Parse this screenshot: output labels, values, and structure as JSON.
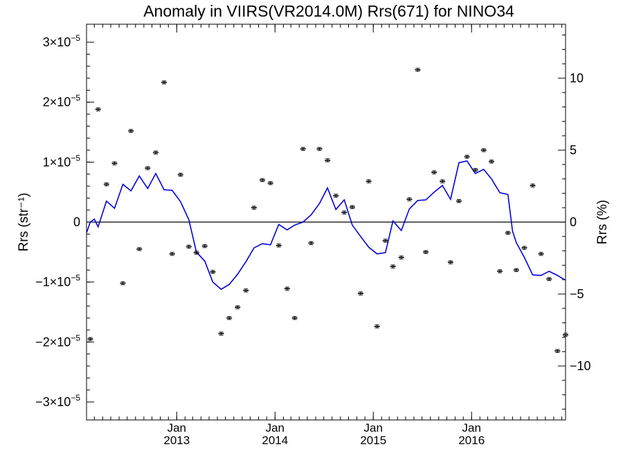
{
  "chart_data": {
    "type": "scatter",
    "title": "Anomaly in VIIRS(VR2014.0M) Rrs(671) for NINO34",
    "ylabel_left": "Rrs (str⁻¹)",
    "ylabel_right": "Rrs (%)",
    "xlim": [
      "2012-02-01",
      "2016-12-15"
    ],
    "ylim": [
      -3.3e-05,
      3.3e-05
    ],
    "y2lim": [
      -13.75,
      13.75
    ],
    "x_ticks": [
      {
        "month": "Jan",
        "year": "2013",
        "date": "2013-01-01"
      },
      {
        "month": "Jan",
        "year": "2014",
        "date": "2014-01-01"
      },
      {
        "month": "Jan",
        "year": "2015",
        "date": "2015-01-01"
      },
      {
        "month": "Jan",
        "year": "2016",
        "date": "2016-01-01"
      }
    ],
    "y_ticks": [
      {
        "value": 3e-05,
        "mantissa": "3",
        "exp": "−5"
      },
      {
        "value": 2e-05,
        "mantissa": "2",
        "exp": "−5"
      },
      {
        "value": 1e-05,
        "mantissa": "1",
        "exp": "−5"
      },
      {
        "value": 0,
        "mantissa": "0",
        "exp": ""
      },
      {
        "value": -1e-05,
        "mantissa": "−1",
        "exp": "−5"
      },
      {
        "value": -2e-05,
        "mantissa": "−2",
        "exp": "−5"
      },
      {
        "value": -3e-05,
        "mantissa": "−3",
        "exp": "−5"
      }
    ],
    "y2_ticks": [
      {
        "value": 10,
        "label": "10"
      },
      {
        "value": 5,
        "label": "5"
      },
      {
        "value": 0,
        "label": "0"
      },
      {
        "value": -5,
        "label": "−5"
      },
      {
        "value": -10,
        "label": "−10"
      }
    ],
    "series": [
      {
        "kind": "points_with_errorbars",
        "color": "#000000",
        "error": 2.5e-07,
        "points": [
          {
            "x": "2012-02-15",
            "y": -1.95e-05
          },
          {
            "x": "2012-03-15",
            "y": 1.88e-05
          },
          {
            "x": "2012-04-15",
            "y": 6.3e-06
          },
          {
            "x": "2012-05-15",
            "y": 9.8e-06
          },
          {
            "x": "2012-06-15",
            "y": -1.02e-05
          },
          {
            "x": "2012-07-15",
            "y": 1.52e-05
          },
          {
            "x": "2012-08-15",
            "y": -4.5e-06
          },
          {
            "x": "2012-09-15",
            "y": 9e-06
          },
          {
            "x": "2012-10-15",
            "y": 1.16e-05
          },
          {
            "x": "2012-11-15",
            "y": 2.33e-05
          },
          {
            "x": "2012-12-15",
            "y": -5.3e-06
          },
          {
            "x": "2013-01-15",
            "y": 7.9e-06
          },
          {
            "x": "2013-02-15",
            "y": -4.1e-06
          },
          {
            "x": "2013-03-15",
            "y": -5.1e-06
          },
          {
            "x": "2013-04-15",
            "y": -4e-06
          },
          {
            "x": "2013-05-15",
            "y": -8.3e-06
          },
          {
            "x": "2013-06-15",
            "y": -1.86e-05
          },
          {
            "x": "2013-07-15",
            "y": -1.6e-05
          },
          {
            "x": "2013-08-15",
            "y": -1.42e-05
          },
          {
            "x": "2013-09-15",
            "y": -1.14e-05
          },
          {
            "x": "2013-10-15",
            "y": 2.4e-06
          },
          {
            "x": "2013-11-15",
            "y": 7e-06
          },
          {
            "x": "2013-12-15",
            "y": 6.5e-06
          },
          {
            "x": "2014-01-15",
            "y": -3.9e-06
          },
          {
            "x": "2014-02-15",
            "y": -1.11e-05
          },
          {
            "x": "2014-03-15",
            "y": -1.6e-05
          },
          {
            "x": "2014-04-15",
            "y": 1.22e-05
          },
          {
            "x": "2014-05-15",
            "y": -3.5e-06
          },
          {
            "x": "2014-06-15",
            "y": 1.22e-05
          },
          {
            "x": "2014-07-15",
            "y": 1.03e-05
          },
          {
            "x": "2014-08-15",
            "y": 4.4e-06
          },
          {
            "x": "2014-09-15",
            "y": 1.6e-06
          },
          {
            "x": "2014-10-15",
            "y": 2.5e-06
          },
          {
            "x": "2014-11-15",
            "y": -1.19e-05
          },
          {
            "x": "2014-12-15",
            "y": 6.8e-06
          },
          {
            "x": "2015-01-15",
            "y": -1.74e-05
          },
          {
            "x": "2015-02-15",
            "y": -3.1e-06
          },
          {
            "x": "2015-03-15",
            "y": -7.4e-06
          },
          {
            "x": "2015-04-15",
            "y": -5.9e-06
          },
          {
            "x": "2015-05-15",
            "y": 3.8e-06
          },
          {
            "x": "2015-06-15",
            "y": 2.54e-05
          },
          {
            "x": "2015-07-15",
            "y": -5e-06
          },
          {
            "x": "2015-08-15",
            "y": 8.3e-06
          },
          {
            "x": "2015-09-15",
            "y": 6.8e-06
          },
          {
            "x": "2015-10-15",
            "y": -6.7e-06
          },
          {
            "x": "2015-11-15",
            "y": 3.5e-06
          },
          {
            "x": "2015-12-15",
            "y": 1.09e-05
          },
          {
            "x": "2016-01-15",
            "y": 8.7e-06
          },
          {
            "x": "2016-02-15",
            "y": 1.2e-05
          },
          {
            "x": "2016-03-15",
            "y": 1.01e-05
          },
          {
            "x": "2016-04-15",
            "y": -8.2e-06
          },
          {
            "x": "2016-05-15",
            "y": -1.8e-06
          },
          {
            "x": "2016-06-15",
            "y": -8e-06
          },
          {
            "x": "2016-07-15",
            "y": -4.3e-06
          },
          {
            "x": "2016-08-15",
            "y": 6.1e-06
          },
          {
            "x": "2016-09-15",
            "y": -5.3e-06
          },
          {
            "x": "2016-10-15",
            "y": -9.5e-06
          },
          {
            "x": "2016-11-15",
            "y": -2.15e-05
          },
          {
            "x": "2016-12-15",
            "y": -1.88e-05
          }
        ]
      },
      {
        "kind": "line",
        "color": "#0000dd",
        "points": [
          {
            "x": "2012-02-01",
            "y": -1.8e-06
          },
          {
            "x": "2012-02-15",
            "y": 0
          },
          {
            "x": "2012-03-01",
            "y": 5e-07
          },
          {
            "x": "2012-03-15",
            "y": -8e-07
          },
          {
            "x": "2012-04-15",
            "y": 3.5e-06
          },
          {
            "x": "2012-05-15",
            "y": 2.3e-06
          },
          {
            "x": "2012-06-15",
            "y": 6.3e-06
          },
          {
            "x": "2012-07-15",
            "y": 5.2e-06
          },
          {
            "x": "2012-08-15",
            "y": 7.7e-06
          },
          {
            "x": "2012-09-15",
            "y": 5.6e-06
          },
          {
            "x": "2012-10-15",
            "y": 8.1e-06
          },
          {
            "x": "2012-11-15",
            "y": 5.4e-06
          },
          {
            "x": "2012-12-15",
            "y": 5.3e-06
          },
          {
            "x": "2013-01-15",
            "y": 3.4e-06
          },
          {
            "x": "2013-02-15",
            "y": 4e-07
          },
          {
            "x": "2013-03-15",
            "y": -5e-06
          },
          {
            "x": "2013-04-15",
            "y": -6.5e-06
          },
          {
            "x": "2013-05-15",
            "y": -1e-05
          },
          {
            "x": "2013-06-15",
            "y": -1.12e-05
          },
          {
            "x": "2013-07-15",
            "y": -1.04e-05
          },
          {
            "x": "2013-08-15",
            "y": -8.7e-06
          },
          {
            "x": "2013-09-15",
            "y": -6.6e-06
          },
          {
            "x": "2013-10-15",
            "y": -4.3e-06
          },
          {
            "x": "2013-11-15",
            "y": -3.6e-06
          },
          {
            "x": "2013-12-15",
            "y": -3.8e-06
          },
          {
            "x": "2014-01-15",
            "y": -4e-07
          },
          {
            "x": "2014-02-15",
            "y": -1.3e-06
          },
          {
            "x": "2014-03-15",
            "y": -5e-07
          },
          {
            "x": "2014-04-15",
            "y": 0
          },
          {
            "x": "2014-05-15",
            "y": 1.2e-06
          },
          {
            "x": "2014-06-15",
            "y": 3.1e-06
          },
          {
            "x": "2014-07-15",
            "y": 5.7e-06
          },
          {
            "x": "2014-08-15",
            "y": 2.1e-06
          },
          {
            "x": "2014-09-15",
            "y": 3.7e-06
          },
          {
            "x": "2014-10-15",
            "y": -5e-07
          },
          {
            "x": "2014-11-15",
            "y": -2.4e-06
          },
          {
            "x": "2014-12-15",
            "y": -4.2e-06
          },
          {
            "x": "2015-01-15",
            "y": -5.3e-06
          },
          {
            "x": "2015-02-15",
            "y": -5.1e-06
          },
          {
            "x": "2015-03-15",
            "y": 2e-07
          },
          {
            "x": "2015-04-15",
            "y": -1.4e-06
          },
          {
            "x": "2015-05-15",
            "y": 2.2e-06
          },
          {
            "x": "2015-06-15",
            "y": 3.6e-06
          },
          {
            "x": "2015-07-15",
            "y": 3.7e-06
          },
          {
            "x": "2015-08-15",
            "y": 5e-06
          },
          {
            "x": "2015-09-15",
            "y": 6.1e-06
          },
          {
            "x": "2015-10-15",
            "y": 3.8e-06
          },
          {
            "x": "2015-11-15",
            "y": 9.9e-06
          },
          {
            "x": "2015-12-15",
            "y": 1.02e-05
          },
          {
            "x": "2016-01-15",
            "y": 8.1e-06
          },
          {
            "x": "2016-02-15",
            "y": 8.8e-06
          },
          {
            "x": "2016-03-15",
            "y": 7.2e-06
          },
          {
            "x": "2016-04-15",
            "y": 4.9e-06
          },
          {
            "x": "2016-05-15",
            "y": 4.6e-06
          },
          {
            "x": "2016-06-01",
            "y": -1.5e-06
          },
          {
            "x": "2016-06-15",
            "y": -3.4e-06
          },
          {
            "x": "2016-07-15",
            "y": -5.9e-06
          },
          {
            "x": "2016-08-15",
            "y": -8.8e-06
          },
          {
            "x": "2016-09-15",
            "y": -8.9e-06
          },
          {
            "x": "2016-10-15",
            "y": -8.2e-06
          },
          {
            "x": "2016-11-15",
            "y": -8.9e-06
          },
          {
            "x": "2016-12-15",
            "y": -9.7e-06
          }
        ]
      }
    ],
    "zero_line": true,
    "grid": false
  }
}
